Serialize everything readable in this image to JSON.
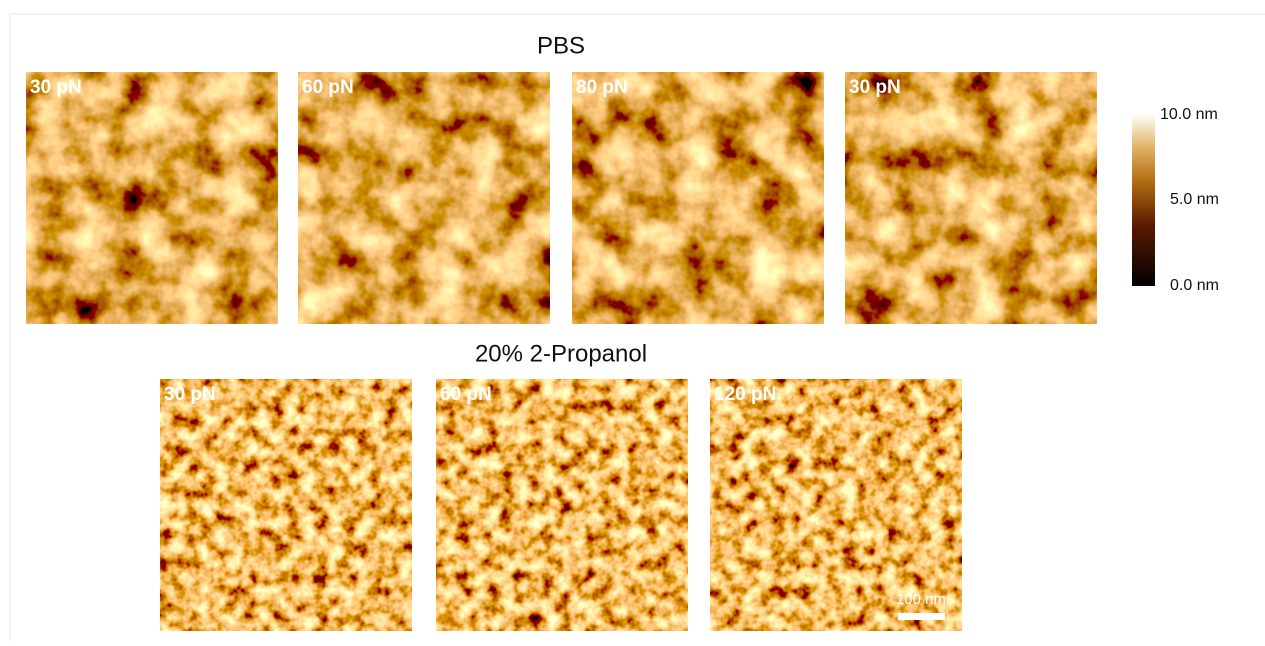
{
  "figure": {
    "top_title": "PBS",
    "top_panels": [
      {
        "label": "30 pN"
      },
      {
        "label": "60 pN"
      },
      {
        "label": "80 pN"
      },
      {
        "label": "30 pN"
      }
    ],
    "bottom_title": "20% 2-Propanol",
    "bottom_panels": [
      {
        "label": "30 pN"
      },
      {
        "label": "60 pN"
      },
      {
        "label": "120 pN"
      }
    ],
    "colorbar_labels": [
      "10.0 nm",
      "5.0 nm",
      "0.0 nm"
    ],
    "scale_bar_label": "100 nm"
  }
}
